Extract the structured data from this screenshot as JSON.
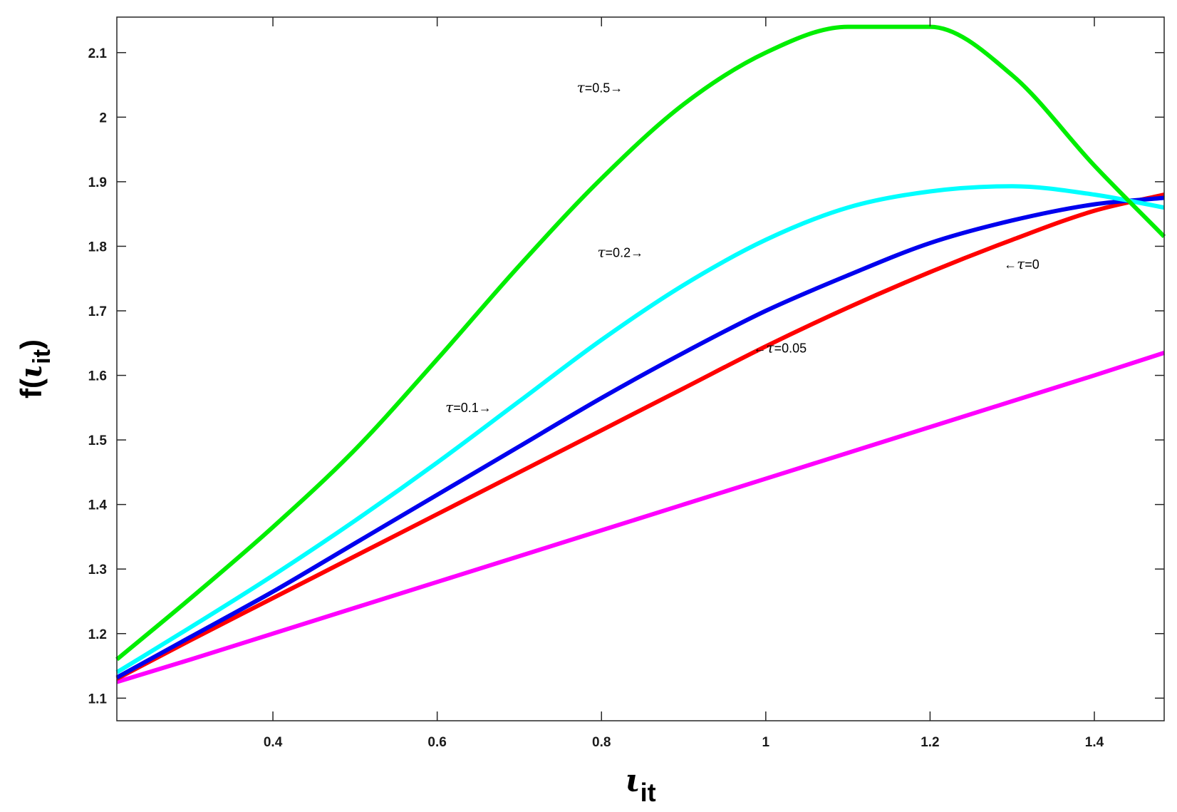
{
  "chart_data": {
    "type": "line",
    "title": "",
    "xlabel": {
      "base": "ι",
      "sub": "it"
    },
    "ylabel": {
      "prefix": "f(",
      "base": "ι",
      "sub": "it",
      "suffix": ")"
    },
    "xlim": [
      0.21,
      1.485
    ],
    "ylim": [
      1.065,
      2.155
    ],
    "xticks": [
      0.4,
      0.6,
      0.8,
      1,
      1.2,
      1.4
    ],
    "xtick_labels": [
      "0.4",
      "0.6",
      "0.8",
      "1",
      "1.2",
      "1.4"
    ],
    "yticks": [
      1.1,
      1.2,
      1.3,
      1.4,
      1.5,
      1.6,
      1.7,
      1.8,
      1.9,
      2,
      2.1
    ],
    "ytick_labels": [
      "1.1",
      "1.2",
      "1.3",
      "1.4",
      "1.5",
      "1.6",
      "1.7",
      "1.8",
      "1.9",
      "2",
      "2.1"
    ],
    "grid": false,
    "legend": "none",
    "x": [
      0.21,
      0.3,
      0.4,
      0.5,
      0.6,
      0.7,
      0.8,
      0.9,
      1.0,
      1.1,
      1.2,
      1.3,
      1.4,
      1.485
    ],
    "series": [
      {
        "color": "#ff00ff",
        "values": [
          1.125,
          1.16,
          1.2,
          1.24,
          1.28,
          1.32,
          1.36,
          1.4,
          1.44,
          1.48,
          1.52,
          1.56,
          1.6,
          1.635
        ]
      },
      {
        "color": "#ff0000",
        "values": [
          1.13,
          1.19,
          1.255,
          1.32,
          1.385,
          1.45,
          1.515,
          1.58,
          1.645,
          1.705,
          1.76,
          1.81,
          1.855,
          1.88
        ]
      },
      {
        "color": "#0000ee",
        "values": [
          1.132,
          1.195,
          1.265,
          1.34,
          1.415,
          1.49,
          1.565,
          1.635,
          1.7,
          1.755,
          1.805,
          1.84,
          1.865,
          1.875
        ]
      },
      {
        "color": "#00ffff",
        "values": [
          1.14,
          1.21,
          1.29,
          1.375,
          1.465,
          1.56,
          1.655,
          1.74,
          1.81,
          1.86,
          1.885,
          1.893,
          1.88,
          1.86
        ]
      },
      {
        "color": "#00ee00",
        "values": [
          1.16,
          1.255,
          1.365,
          1.485,
          1.625,
          1.77,
          1.905,
          2.02,
          2.1,
          2.14,
          2.14,
          2.065,
          1.925,
          1.815
        ]
      }
    ],
    "annotations": [
      {
        "text": "τ=0.5→",
        "x": 0.77,
        "y": 2.045
      },
      {
        "text": "τ=0.2→",
        "x": 0.795,
        "y": 1.79
      },
      {
        "text": "τ=0.1→",
        "x": 0.61,
        "y": 1.55
      },
      {
        "text": "←τ=0.05",
        "x": 0.985,
        "y": 1.642
      },
      {
        "text": "←τ=0",
        "x": 1.29,
        "y": 1.772
      }
    ]
  }
}
